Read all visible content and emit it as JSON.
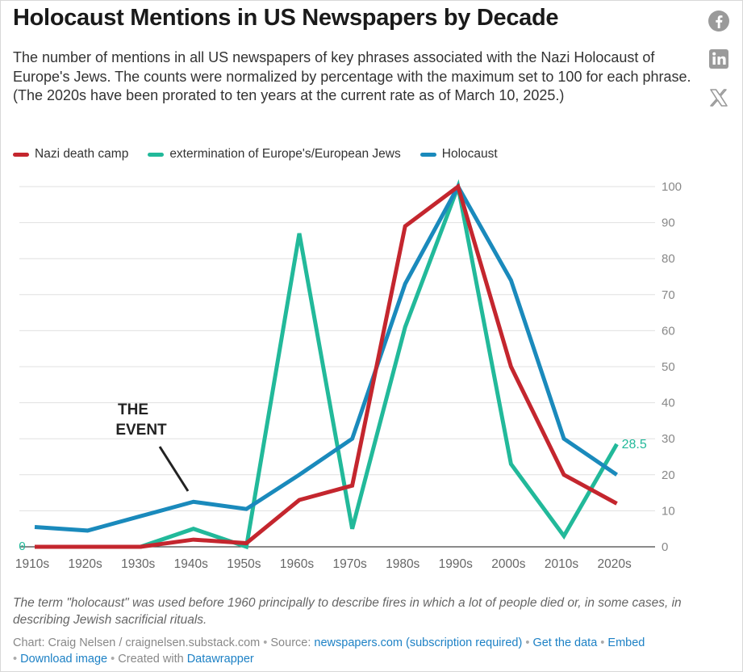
{
  "title": "Holocaust Mentions in US Newspapers by Decade",
  "subtitle": "The number of mentions in all US newspapers of key phrases associated with the Nazi Holocaust of Europe's Jews. The counts were normalized by percentage with the maximum set to 100 for each phrase. (The 2020s have been prorated to ten years at the current rate as of March 10, 2025.)",
  "share_icons": [
    "facebook-icon",
    "linkedin-icon",
    "x-icon"
  ],
  "annotation": {
    "line1": "THE",
    "line2": "EVENT"
  },
  "note": "The term \"holocaust\" was used before 1960 principally to describe fires in which a lot of people died or, in some cases, in describing Jewish sacrificial rituals.",
  "footer": {
    "chart_credit": "Chart: Craig Nelsen / craignelsen.substack.com",
    "source_prefix": "Source:",
    "source_link": "newspapers.com (subscription required)",
    "get_data": "Get the data",
    "embed": "Embed",
    "download": "Download image",
    "created_with": "Created with",
    "datawrapper": "Datawrapper",
    "separator": "•"
  },
  "colors": {
    "nazi_death_camp": "#c4262e",
    "extermination": "#22b99a",
    "holocaust": "#1a8abc",
    "grid": "#e0e0e0",
    "tick": "#888888"
  },
  "chart_data": {
    "type": "line",
    "categories": [
      "1910s",
      "1920s",
      "1930s",
      "1940s",
      "1950s",
      "1960s",
      "1970s",
      "1980s",
      "1990s",
      "2000s",
      "2010s",
      "2020s"
    ],
    "ylim": [
      0,
      100
    ],
    "yticks": [
      0,
      10,
      20,
      30,
      40,
      50,
      60,
      70,
      80,
      90,
      100
    ],
    "grid": true,
    "legend_position": "top-left",
    "series": [
      {
        "name": "Nazi death camp",
        "color": "#c4262e",
        "values": [
          0,
          0,
          0,
          2,
          1,
          13,
          17,
          89,
          100,
          50,
          20,
          12
        ]
      },
      {
        "name": "extermination of Europe's/European Jews",
        "color": "#22b99a",
        "values": [
          0,
          0,
          0,
          5,
          0,
          87,
          5,
          61,
          100,
          23,
          3,
          28.5
        ]
      },
      {
        "name": "Holocaust",
        "color": "#1a8abc",
        "values": [
          5.5,
          4.5,
          8.5,
          12.5,
          10.5,
          20,
          30,
          73,
          100,
          74,
          30,
          20
        ]
      }
    ],
    "labels": {
      "start_value": "0",
      "end_value": "28.5"
    }
  }
}
